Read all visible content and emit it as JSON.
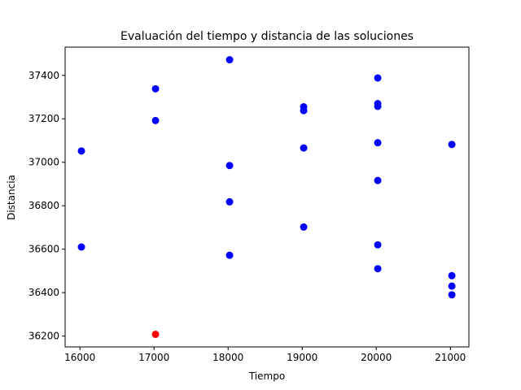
{
  "chart_data": {
    "type": "scatter",
    "title": "Evaluación del tiempo y distancia de las soluciones",
    "xlabel": "Tiempo",
    "ylabel": "Distancia",
    "xlim": [
      15800,
      21250
    ],
    "ylim": [
      36150,
      37530
    ],
    "xticks": [
      16000,
      17000,
      18000,
      19000,
      20000,
      21000
    ],
    "yticks": [
      36200,
      36400,
      36600,
      36800,
      37000,
      37200,
      37400
    ],
    "grid": false,
    "colors": {
      "default": "#0000ff",
      "highlight": "#ff0000"
    },
    "points": [
      {
        "x": 16020,
        "y": 37052,
        "color": "#0000ff"
      },
      {
        "x": 16020,
        "y": 36610,
        "color": "#0000ff"
      },
      {
        "x": 17020,
        "y": 37338,
        "color": "#0000ff"
      },
      {
        "x": 17020,
        "y": 37192,
        "color": "#0000ff"
      },
      {
        "x": 17020,
        "y": 36208,
        "color": "#ff0000"
      },
      {
        "x": 18020,
        "y": 37472,
        "color": "#0000ff"
      },
      {
        "x": 18020,
        "y": 36985,
        "color": "#0000ff"
      },
      {
        "x": 18020,
        "y": 36818,
        "color": "#0000ff"
      },
      {
        "x": 18020,
        "y": 36572,
        "color": "#0000ff"
      },
      {
        "x": 19020,
        "y": 37255,
        "color": "#0000ff"
      },
      {
        "x": 19020,
        "y": 37238,
        "color": "#0000ff"
      },
      {
        "x": 19020,
        "y": 37066,
        "color": "#0000ff"
      },
      {
        "x": 19020,
        "y": 36702,
        "color": "#0000ff"
      },
      {
        "x": 20020,
        "y": 37388,
        "color": "#0000ff"
      },
      {
        "x": 20020,
        "y": 37270,
        "color": "#0000ff"
      },
      {
        "x": 20020,
        "y": 37257,
        "color": "#0000ff"
      },
      {
        "x": 20020,
        "y": 37090,
        "color": "#0000ff"
      },
      {
        "x": 20020,
        "y": 36916,
        "color": "#0000ff"
      },
      {
        "x": 20020,
        "y": 36620,
        "color": "#0000ff"
      },
      {
        "x": 20020,
        "y": 36510,
        "color": "#0000ff"
      },
      {
        "x": 21020,
        "y": 37082,
        "color": "#0000ff"
      },
      {
        "x": 21020,
        "y": 36478,
        "color": "#0000ff"
      },
      {
        "x": 21020,
        "y": 36430,
        "color": "#0000ff"
      },
      {
        "x": 21020,
        "y": 36390,
        "color": "#0000ff"
      }
    ]
  }
}
